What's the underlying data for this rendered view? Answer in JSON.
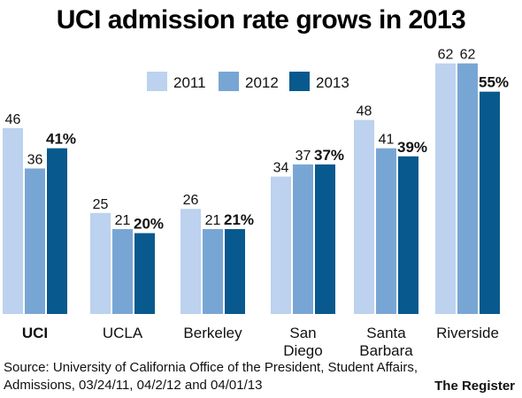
{
  "title": "UCI admission rate grows in 2013",
  "source": "Source: University of California Office of the President, Student Affairs, Admissions, 03/24/11, 04/2/12 and 04/01/13",
  "publisher": "The Register",
  "colors": {
    "2011": "#bcd2ee",
    "2012": "#78a6d4",
    "2013": "#08598e"
  },
  "chart_data": {
    "type": "bar",
    "title": "UCI admission rate grows in 2013",
    "categories": [
      "UCI",
      "UCLA",
      "Berkeley",
      "San Diego",
      "Santa Barbara",
      "Riverside"
    ],
    "category_lines": [
      [
        "UCI"
      ],
      [
        "UCLA"
      ],
      [
        "Berkeley"
      ],
      [
        "San",
        "Diego"
      ],
      [
        "Santa",
        "Barbara"
      ],
      [
        "Riverside"
      ]
    ],
    "highlight_category": "UCI",
    "series": [
      {
        "name": "2011",
        "values": [
          46,
          25,
          26,
          34,
          48,
          62
        ]
      },
      {
        "name": "2012",
        "values": [
          36,
          21,
          21,
          37,
          41,
          62
        ]
      },
      {
        "name": "2013",
        "values": [
          41,
          20,
          21,
          37,
          39,
          55
        ]
      }
    ],
    "value_labels": [
      [
        "46",
        "25",
        "26",
        "34",
        "48",
        "62"
      ],
      [
        "36",
        "21",
        "21",
        "37",
        "41",
        "62"
      ],
      [
        "41%",
        "20%",
        "21%",
        "37%",
        "39%",
        "55%"
      ]
    ],
    "ylim": [
      0,
      68
    ],
    "xlabel": "",
    "ylabel": "",
    "grid": false,
    "legend": "top-center"
  }
}
